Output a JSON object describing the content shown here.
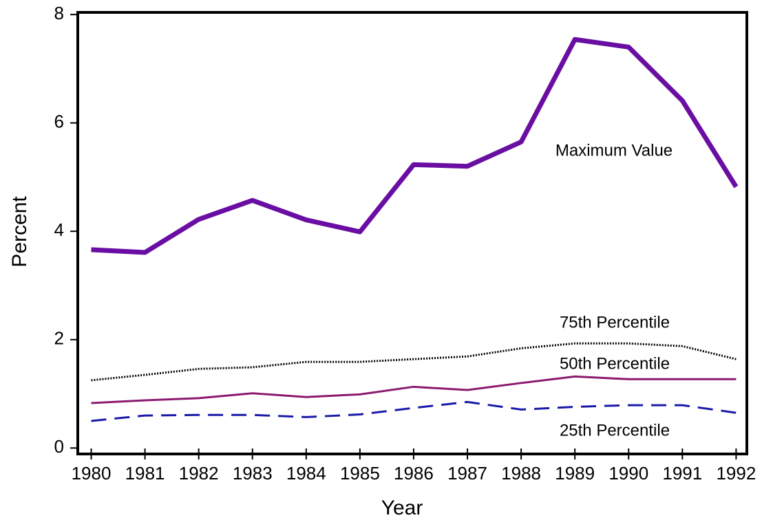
{
  "chart_data": {
    "type": "line",
    "x_label": "Year",
    "y_label": "Percent",
    "x": [
      1980,
      1981,
      1982,
      1983,
      1984,
      1985,
      1986,
      1987,
      1988,
      1989,
      1990,
      1991,
      1992
    ],
    "series": [
      {
        "name": "Maximum Value",
        "color": "#6a0ea3",
        "line_style": "solid",
        "values": [
          3.66,
          3.61,
          4.22,
          4.57,
          4.21,
          3.99,
          5.23,
          5.2,
          5.65,
          7.54,
          7.4,
          6.41,
          4.82
        ]
      },
      {
        "name": "75th Percentile",
        "color": "#000000",
        "line_style": "dotted",
        "values": [
          1.25,
          1.35,
          1.46,
          1.49,
          1.59,
          1.59,
          1.64,
          1.69,
          1.84,
          1.93,
          1.93,
          1.88,
          1.64
        ]
      },
      {
        "name": "50th Percentile",
        "color": "#8b1a6e",
        "line_style": "solid",
        "values": [
          0.83,
          0.88,
          0.92,
          1.01,
          0.94,
          0.99,
          1.13,
          1.07,
          1.2,
          1.32,
          1.27,
          1.27,
          1.27
        ]
      },
      {
        "name": "25th Percentile",
        "color": "#1a1aa8",
        "line_style": "dashed",
        "values": [
          0.5,
          0.6,
          0.61,
          0.61,
          0.57,
          0.62,
          0.74,
          0.85,
          0.71,
          0.76,
          0.79,
          0.79,
          0.65
        ]
      }
    ],
    "xlim": [
      1979.75,
      1992.2
    ],
    "xticks": [
      1980,
      1981,
      1982,
      1983,
      1984,
      1985,
      1986,
      1987,
      1988,
      1989,
      1990,
      1991,
      1992
    ],
    "ylim": [
      -0.11,
      8.04
    ],
    "yticks": [
      0,
      2,
      4,
      6,
      8
    ]
  }
}
